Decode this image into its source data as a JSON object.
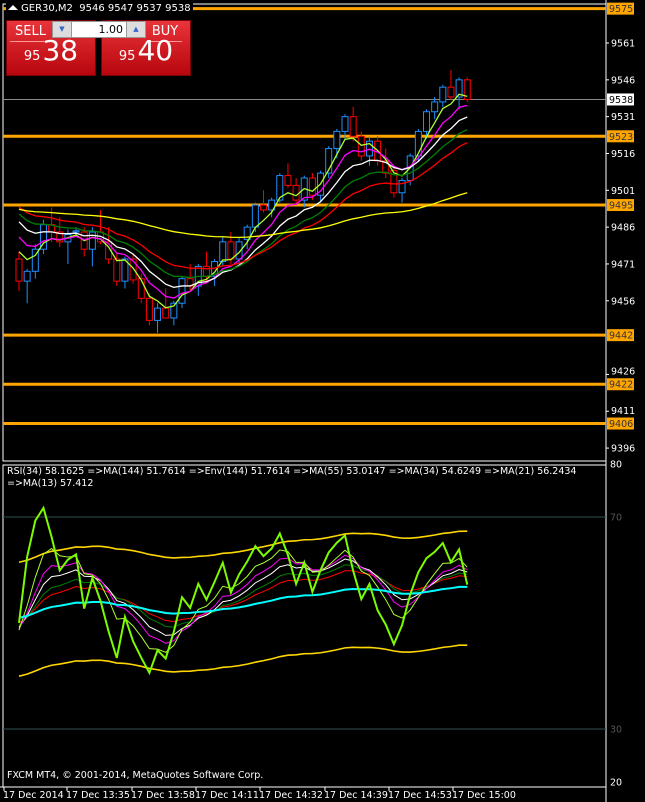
{
  "header": {
    "symbol": "GER30,M2",
    "ohlc": "9546 9547 9537 9538"
  },
  "trade_panel": {
    "sell_label": "SELL",
    "buy_label": "BUY",
    "lot": "1.00",
    "sell_prefix": "95",
    "sell_big": "38",
    "buy_prefix": "95",
    "buy_big": "40"
  },
  "price_axis": {
    "ticks": [
      "9561",
      "9546",
      "9531",
      "9516",
      "9501",
      "9486",
      "9471",
      "9456",
      "9426",
      "9411",
      "9396"
    ],
    "tick_values": [
      9561,
      9546,
      9531,
      9516,
      9501,
      9486,
      9471,
      9456,
      9426,
      9411,
      9396
    ],
    "current_price": "9538",
    "current_value": 9538,
    "levels": [
      {
        "label": "9575",
        "value": 9575
      },
      {
        "label": "9523",
        "value": 9523
      },
      {
        "label": "9495",
        "value": 9495
      },
      {
        "label": "9442",
        "value": 9442
      },
      {
        "label": "9422",
        "value": 9422
      },
      {
        "label": "9406",
        "value": 9406
      }
    ],
    "level_color": "#ffa500"
  },
  "candles": [
    [
      9473,
      9476,
      9460,
      9464
    ],
    [
      9464,
      9469,
      9455,
      9468
    ],
    [
      9468,
      9479,
      9465,
      9477
    ],
    [
      9477,
      9489,
      9475,
      9487
    ],
    [
      9487,
      9494,
      9480,
      9484
    ],
    [
      9484,
      9490,
      9478,
      9480
    ],
    [
      9480,
      9485,
      9471,
      9483
    ],
    [
      9484,
      9486,
      9482,
      9484.5
    ],
    [
      9484,
      9486,
      9474,
      9477
    ],
    [
      9477,
      9486,
      9470,
      9484
    ],
    [
      9484,
      9493,
      9479,
      9480
    ],
    [
      9480,
      9486,
      9471,
      9473
    ],
    [
      9473,
      9475,
      9462,
      9464
    ],
    [
      9464,
      9474,
      9461,
      9473
    ],
    [
      9473,
      9475,
      9463,
      9464.5
    ],
    [
      9465,
      9467,
      9455,
      9457
    ],
    [
      9457,
      9459,
      9446,
      9448
    ],
    [
      9448,
      9455,
      9443,
      9453
    ],
    [
      9453,
      9461,
      9450,
      9449
    ],
    [
      9449,
      9456,
      9446,
      9455
    ],
    [
      9455,
      9466,
      9453,
      9465
    ],
    [
      9465,
      9471,
      9460,
      9462
    ],
    [
      9462,
      9471,
      9458,
      9470
    ],
    [
      9470,
      9476,
      9464,
      9466
    ],
    [
      9466,
      9473,
      9462,
      9472
    ],
    [
      9472,
      9482,
      9470,
      9480
    ],
    [
      9480,
      9484,
      9471,
      9473
    ],
    [
      9473,
      9482,
      9471,
      9480
    ],
    [
      9481,
      9487,
      9477,
      9486
    ],
    [
      9486,
      9496,
      9484,
      9495
    ],
    [
      9495,
      9501,
      9492,
      9493
    ],
    [
      9493,
      9498,
      9490,
      9497
    ],
    [
      9497,
      9508,
      9496,
      9507
    ],
    [
      9507,
      9512,
      9502,
      9503
    ],
    [
      9503,
      9506,
      9495,
      9497
    ],
    [
      9497,
      9507,
      9494,
      9506
    ],
    [
      9506,
      9508,
      9497,
      9499
    ],
    [
      9499,
      9509,
      9496,
      9508
    ],
    [
      9508,
      9519,
      9506,
      9518
    ],
    [
      9518,
      9526,
      9514,
      9525
    ],
    [
      9525,
      9532,
      9522,
      9531
    ],
    [
      9531,
      9535,
      9521,
      9523
    ],
    [
      9523,
      9525,
      9513,
      9515
    ],
    [
      9515,
      9523,
      9511,
      9521
    ],
    [
      9521,
      9523,
      9511,
      9513
    ],
    [
      9513,
      9518,
      9506,
      9508
    ],
    [
      9509,
      9511,
      9498,
      9500
    ],
    [
      9500,
      9506,
      9496,
      9505
    ],
    [
      9505,
      9516,
      9503,
      9515
    ],
    [
      9515,
      9526,
      9513,
      9525
    ],
    [
      9525,
      9534,
      9522,
      9533
    ],
    [
      9533,
      9539,
      9530,
      9537
    ],
    [
      9537,
      9544,
      9535,
      9543
    ],
    [
      9543,
      9550,
      9538,
      9539
    ],
    [
      9539,
      9547,
      9534,
      9546
    ],
    [
      9546,
      9547,
      9537,
      9538
    ]
  ],
  "candle_colors": {
    "bull": "#1e90ff",
    "bear": "#ff0000"
  },
  "price_mas": [
    {
      "color": "#adff2f",
      "period": 4,
      "seed": 9484
    },
    {
      "color": "#ff00ff",
      "period": 7,
      "seed": 9488
    },
    {
      "color": "#ffffff",
      "period": 11,
      "seed": 9493
    },
    {
      "color": "#008000",
      "period": 16,
      "seed": 9495
    },
    {
      "color": "#ff0000",
      "period": 22,
      "seed": 9497
    },
    {
      "color": "#ffff00",
      "period": 80,
      "seed": 9494
    }
  ],
  "rsi": {
    "legend": "RSI(34) 58.1625  =>MA(144) 51.7614  =>Env(144) 51.7614  =>MA(55) 53.0147  =>MA(34) 54.6249  =>MA(21) 56.2434  =>MA(13) 57.412",
    "axis_ticks": [
      {
        "label": "80",
        "value": 80
      },
      {
        "label": "70",
        "value": 70
      },
      {
        "label": "30",
        "value": 30
      },
      {
        "label": "20",
        "value": 20
      }
    ],
    "line_color": "#7cfc00",
    "ma144_color": "#00ffff",
    "envelope_color": "#ffd700"
  },
  "time_axis": [
    "17 Dec 2014",
    "17 Dec 13:35",
    "17 Dec 13:58",
    "17 Dec 14:11",
    "17 Dec 14:32",
    "17 Dec 14:39",
    "17 Dec 14:53",
    "17 Dec 15:00"
  ],
  "footer": {
    "copyright": "FXCM MT4, © 2001-2014, MetaQuotes Software Corp."
  }
}
